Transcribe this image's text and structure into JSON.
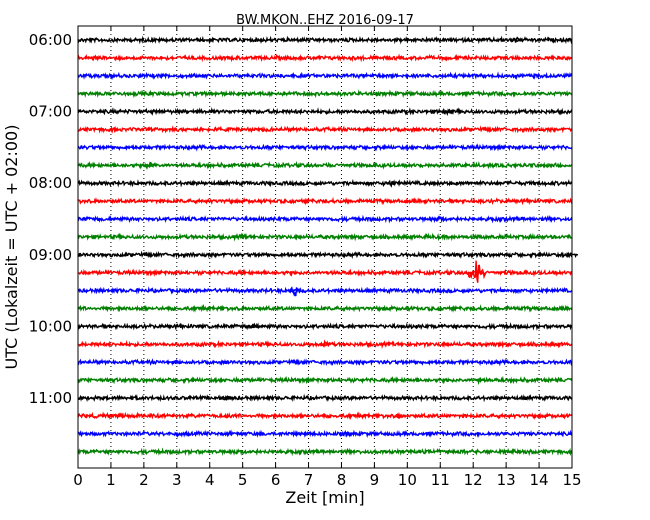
{
  "chart_data": {
    "type": "line",
    "title": "BW.MKON..EHZ 2016-09-17",
    "xlabel": "Zeit  [min]",
    "ylabel": "UTC (Lokalzeit = UTC + 02:00)",
    "xlim": [
      0,
      15
    ],
    "x_ticks": [
      "0",
      "1",
      "2",
      "3",
      "4",
      "5",
      "6",
      "7",
      "8",
      "9",
      "10",
      "11",
      "12",
      "13",
      "14",
      "15"
    ],
    "y_ticks": [
      "06:00",
      "07:00",
      "08:00",
      "09:00",
      "10:00",
      "11:00"
    ],
    "grid": "vertical dotted",
    "trace_interval_minutes": 15,
    "color_cycle": [
      "#000000",
      "#ff0000",
      "#0000ff",
      "#008000"
    ],
    "traces": [
      {
        "start": "06:00",
        "color": "#000000",
        "peak_min": 13.3
      },
      {
        "start": "06:15",
        "color": "#ff0000",
        "peak_min": null
      },
      {
        "start": "06:30",
        "color": "#0000ff",
        "peak_min": null
      },
      {
        "start": "06:45",
        "color": "#008000",
        "peak_min": null
      },
      {
        "start": "07:00",
        "color": "#000000",
        "peak_min": 11.2
      },
      {
        "start": "07:15",
        "color": "#ff0000",
        "peak_min": null
      },
      {
        "start": "07:30",
        "color": "#0000ff",
        "peak_min": null
      },
      {
        "start": "07:45",
        "color": "#008000",
        "peak_min": 2.2
      },
      {
        "start": "08:00",
        "color": "#000000",
        "peak_min": 9.5
      },
      {
        "start": "08:15",
        "color": "#ff0000",
        "peak_min": null
      },
      {
        "start": "08:30",
        "color": "#0000ff",
        "peak_min": 11.0
      },
      {
        "start": "08:45",
        "color": "#008000",
        "peak_min": 5.0
      },
      {
        "start": "09:00",
        "color": "#000000",
        "peak_min": 15.0
      },
      {
        "start": "09:15",
        "color": "#ff0000",
        "peak_min": 12.1
      },
      {
        "start": "09:30",
        "color": "#0000ff",
        "peak_min": 6.6
      },
      {
        "start": "09:45",
        "color": "#008000",
        "peak_min": null
      },
      {
        "start": "10:00",
        "color": "#000000",
        "peak_min": 5.3
      },
      {
        "start": "10:15",
        "color": "#ff0000",
        "peak_min": 7.5
      },
      {
        "start": "10:30",
        "color": "#0000ff",
        "peak_min": null
      },
      {
        "start": "10:45",
        "color": "#008000",
        "peak_min": 12.2
      },
      {
        "start": "11:00",
        "color": "#000000",
        "peak_min": 4.5
      },
      {
        "start": "11:15",
        "color": "#ff0000",
        "peak_min": 9.8
      },
      {
        "start": "11:30",
        "color": "#0000ff",
        "peak_min": 8.2
      },
      {
        "start": "11:45",
        "color": "#008000",
        "peak_min": null
      }
    ]
  }
}
